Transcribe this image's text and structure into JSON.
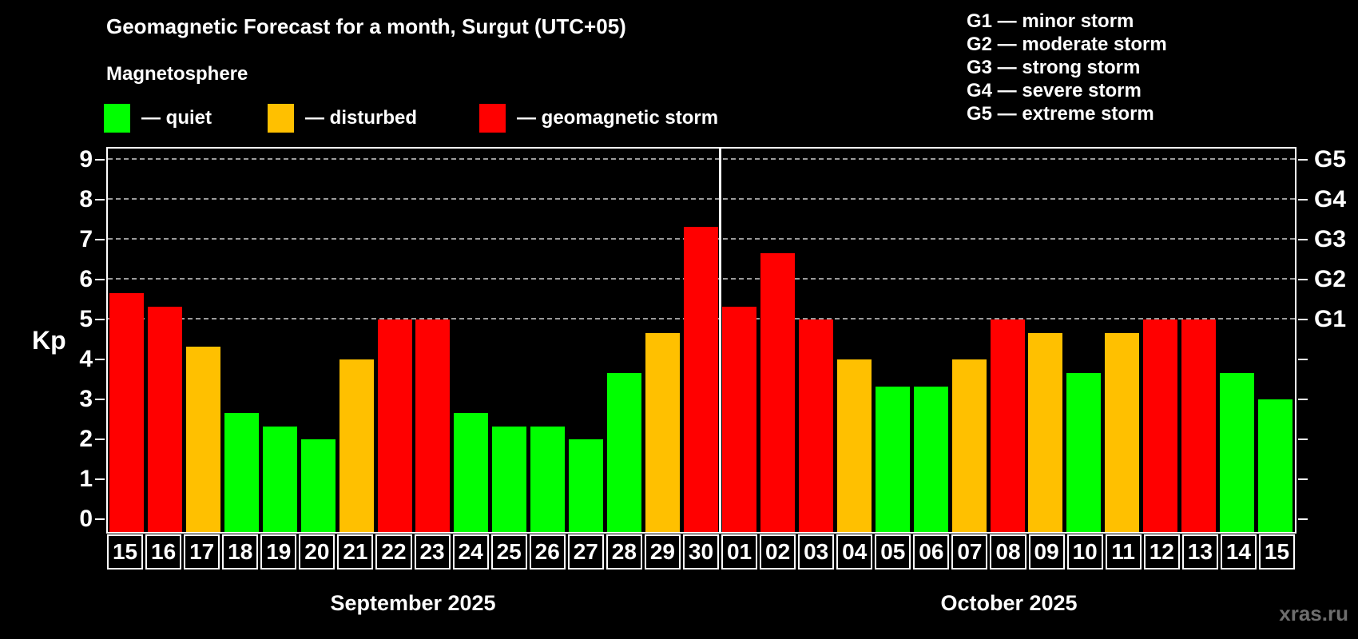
{
  "title": "Geomagnetic Forecast for a month, Surgut (UTC+05)",
  "subtitle": "Magnetosphere",
  "legend": [
    {
      "key": "quiet",
      "label": "— quiet"
    },
    {
      "key": "disturbed",
      "label": "— disturbed"
    },
    {
      "key": "storm",
      "label": "— geomagnetic storm"
    }
  ],
  "g_legend": [
    "G1 — minor storm",
    "G2 — moderate storm",
    "G3 — strong storm",
    "G4 — severe storm",
    "G5 — extreme storm"
  ],
  "colors": {
    "quiet": "#00ff00",
    "disturbed": "#ffc000",
    "storm": "#ff0000",
    "grid": "#9b9b9b",
    "frame": "#ffffff",
    "watermark": "#6e6e6e"
  },
  "axis": {
    "y_label": "Kp",
    "y_ticks": [
      "0",
      "1",
      "2",
      "3",
      "4",
      "5",
      "6",
      "7",
      "8",
      "9"
    ],
    "g_labels": [
      {
        "value": 5,
        "label": "G1"
      },
      {
        "value": 6,
        "label": "G2"
      },
      {
        "value": 7,
        "label": "G3"
      },
      {
        "value": 8,
        "label": "G4"
      },
      {
        "value": 9,
        "label": "G5"
      }
    ]
  },
  "months": [
    {
      "label": "September 2025",
      "count": 16
    },
    {
      "label": "October 2025",
      "count": 15
    }
  ],
  "watermark": "xras.ru",
  "chart_data": {
    "type": "bar",
    "title": "Geomagnetic Forecast for a month, Surgut (UTC+05)",
    "ylabel": "Kp",
    "ylim": [
      0,
      9
    ],
    "grid": "dashed horizontal at Kp 5-9 (G1-G5)",
    "legend_position": "top-left",
    "categories": [
      "15",
      "16",
      "17",
      "18",
      "19",
      "20",
      "21",
      "22",
      "23",
      "24",
      "25",
      "26",
      "27",
      "28",
      "29",
      "30",
      "01",
      "02",
      "03",
      "04",
      "05",
      "06",
      "07",
      "08",
      "09",
      "10",
      "11",
      "12",
      "13",
      "14",
      "15"
    ],
    "values": [
      5.67,
      5.33,
      4.33,
      2.67,
      2.33,
      2.0,
      4.0,
      5.0,
      5.0,
      2.67,
      2.33,
      2.33,
      2.0,
      3.67,
      4.67,
      7.33,
      5.33,
      6.67,
      5.0,
      4.0,
      3.33,
      3.33,
      4.0,
      5.0,
      4.67,
      3.67,
      4.67,
      5.0,
      5.0,
      3.67,
      3.0
    ],
    "states": [
      "storm",
      "storm",
      "disturbed",
      "quiet",
      "quiet",
      "quiet",
      "disturbed",
      "storm",
      "storm",
      "quiet",
      "quiet",
      "quiet",
      "quiet",
      "quiet",
      "disturbed",
      "storm",
      "storm",
      "storm",
      "storm",
      "disturbed",
      "quiet",
      "quiet",
      "disturbed",
      "storm",
      "disturbed",
      "quiet",
      "disturbed",
      "storm",
      "storm",
      "quiet",
      "quiet"
    ]
  }
}
